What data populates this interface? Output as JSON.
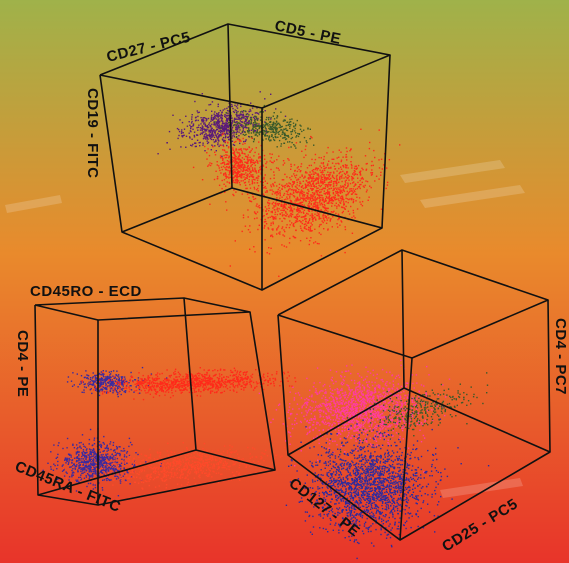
{
  "figure": {
    "background": {
      "top": "#9fb24a",
      "middle": "#e98a2c",
      "bottom": "#e8342a"
    }
  },
  "chart_data": [
    {
      "type": "scatter",
      "panel": "top-cube",
      "axes": {
        "x": "CD27 - PC5",
        "y": "CD5 - PE",
        "z": "CD19 - FITC"
      },
      "series": [
        {
          "color": "#5a1a7a",
          "cluster": "upper-left"
        },
        {
          "color": "#3a5a2a",
          "cluster": "upper-right"
        },
        {
          "color": "#ff2a1a",
          "cluster": "center-small"
        },
        {
          "color": "#ff2a1a",
          "cluster": "lower-right-large"
        }
      ]
    },
    {
      "type": "scatter",
      "panel": "bottom-left-cube",
      "axes": {
        "x": "CD45RO - ECD",
        "y": "CD4 - PE",
        "z": "CD45RA - FITC"
      },
      "series": [
        {
          "color": "#3a2aa0",
          "cluster": "upper-left"
        },
        {
          "color": "#ff2a1a",
          "cluster": "upper-right"
        },
        {
          "color": "#3a2aa0",
          "cluster": "lower-left"
        },
        {
          "color": "#ff4a2a",
          "cluster": "lower-right"
        }
      ]
    },
    {
      "type": "scatter",
      "panel": "bottom-right-cube",
      "axes": {
        "x": "CD4 - PC7",
        "y": "CD127 - PE",
        "z": "CD25 - PC5"
      },
      "series": [
        {
          "color": "#ff3ca0",
          "cluster": "upper"
        },
        {
          "color": "#3a5a2a",
          "cluster": "upper-right"
        },
        {
          "color": "#2a2aa0",
          "cluster": "lower"
        }
      ]
    }
  ]
}
